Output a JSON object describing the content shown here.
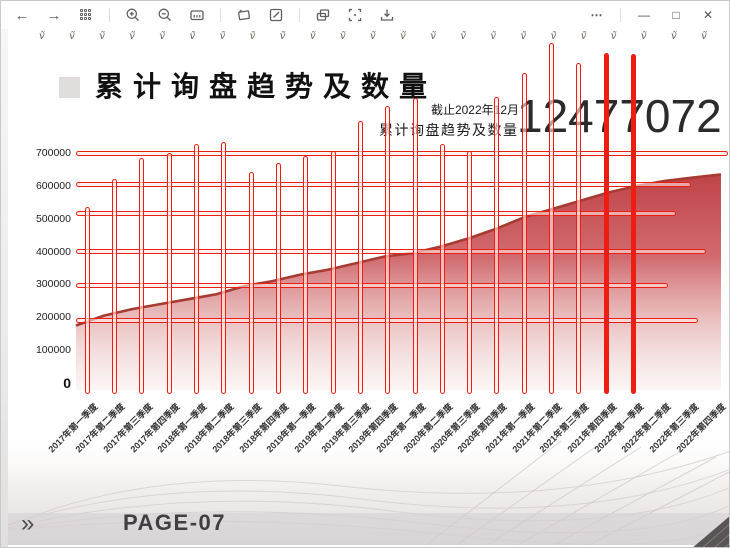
{
  "window": {
    "controls": {
      "more": "⋯",
      "minimize": "—",
      "maximize": "□",
      "close": "✕"
    },
    "toolbar_icons": [
      "back",
      "forward",
      "grid-view",
      "zoom-in",
      "zoom-out",
      "slide-sorter",
      "shape",
      "edit",
      "duplicate",
      "fit-screen",
      "download"
    ]
  },
  "decor": {
    "glyph": "ṽ",
    "count": 23
  },
  "header": {
    "title": "累计询盘趋势及数量",
    "as_of": "截止2022年12月",
    "stat_label": "累计询盘趋势及数量",
    "stat_value": "12477072"
  },
  "footer": {
    "arrow": "»",
    "page": "PAGE-07"
  },
  "chart_data": {
    "type": "area",
    "title": "累计询盘趋势及数量",
    "categories": [
      "2017年第一季度",
      "2017年第二季度",
      "2017年第三季度",
      "2017年第四季度",
      "2018年第一季度",
      "2018年第二季度",
      "2018年第三季度",
      "2018年第四季度",
      "2019年第一季度",
      "2019年第二季度",
      "2019年第三季度",
      "2019年第四季度",
      "2020年第一季度",
      "2020年第二季度",
      "2020年第三季度",
      "2020年第四季度",
      "2021年第一季度",
      "2021年第二季度",
      "2021年第三季度",
      "2021年第四季度",
      "2022年第一季度",
      "2022年第二季度",
      "2022年第三季度",
      "2022年第四季度"
    ],
    "values": [
      175000,
      205000,
      225000,
      240000,
      255000,
      270000,
      295000,
      310000,
      330000,
      345000,
      365000,
      385000,
      395000,
      415000,
      440000,
      470000,
      505000,
      530000,
      555000,
      580000,
      600000,
      615000,
      625000,
      635000
    ],
    "ylim": [
      0,
      700000
    ],
    "yticks": [
      700000,
      600000,
      500000,
      400000,
      300000,
      200000,
      100000,
      0
    ],
    "xlabel": "",
    "ylabel": "",
    "legend_position": "none",
    "grid": true,
    "colors": {
      "accent": "#ee1d11",
      "area_edge": "#a63c31",
      "area_fill_top": "#bd3d42",
      "area_fill_bottom": "#f0dcd7"
    },
    "layout": {
      "plot": {
        "x_left": 75,
        "x_right": 720,
        "y_top": 152,
        "y_zero": 382,
        "ylabel_right": 70,
        "x_first_center": 86,
        "x_step": 27.3,
        "xlabel_top": 399,
        "area_bottom": 389,
        "spike_bottom": 393
      },
      "gridlines": [
        {
          "y": 152,
          "x2": 727
        },
        {
          "y": 183,
          "x2": 690
        },
        {
          "y": 212,
          "x2": 675
        },
        {
          "y": 250,
          "x2": 705
        },
        {
          "y": 284,
          "x2": 667
        },
        {
          "y": 319,
          "x2": 697
        }
      ],
      "spikes": [
        {
          "x": 86,
          "top": 206
        },
        {
          "x": 113,
          "top": 178
        },
        {
          "x": 140,
          "top": 157
        },
        {
          "x": 168,
          "top": 152
        },
        {
          "x": 195,
          "top": 143
        },
        {
          "x": 222,
          "top": 141
        },
        {
          "x": 250,
          "top": 171
        },
        {
          "x": 277,
          "top": 162
        },
        {
          "x": 304,
          "top": 155
        },
        {
          "x": 332,
          "top": 150
        },
        {
          "x": 359,
          "top": 120
        },
        {
          "x": 386,
          "top": 105
        },
        {
          "x": 414,
          "top": 97
        },
        {
          "x": 441,
          "top": 143
        },
        {
          "x": 468,
          "top": 150
        },
        {
          "x": 495,
          "top": 96
        },
        {
          "x": 523,
          "top": 72
        },
        {
          "x": 550,
          "top": 42
        },
        {
          "x": 577,
          "top": 62
        },
        {
          "x": 605,
          "top": 52,
          "solid": true
        },
        {
          "x": 632,
          "top": 53,
          "solid": true
        }
      ]
    }
  }
}
